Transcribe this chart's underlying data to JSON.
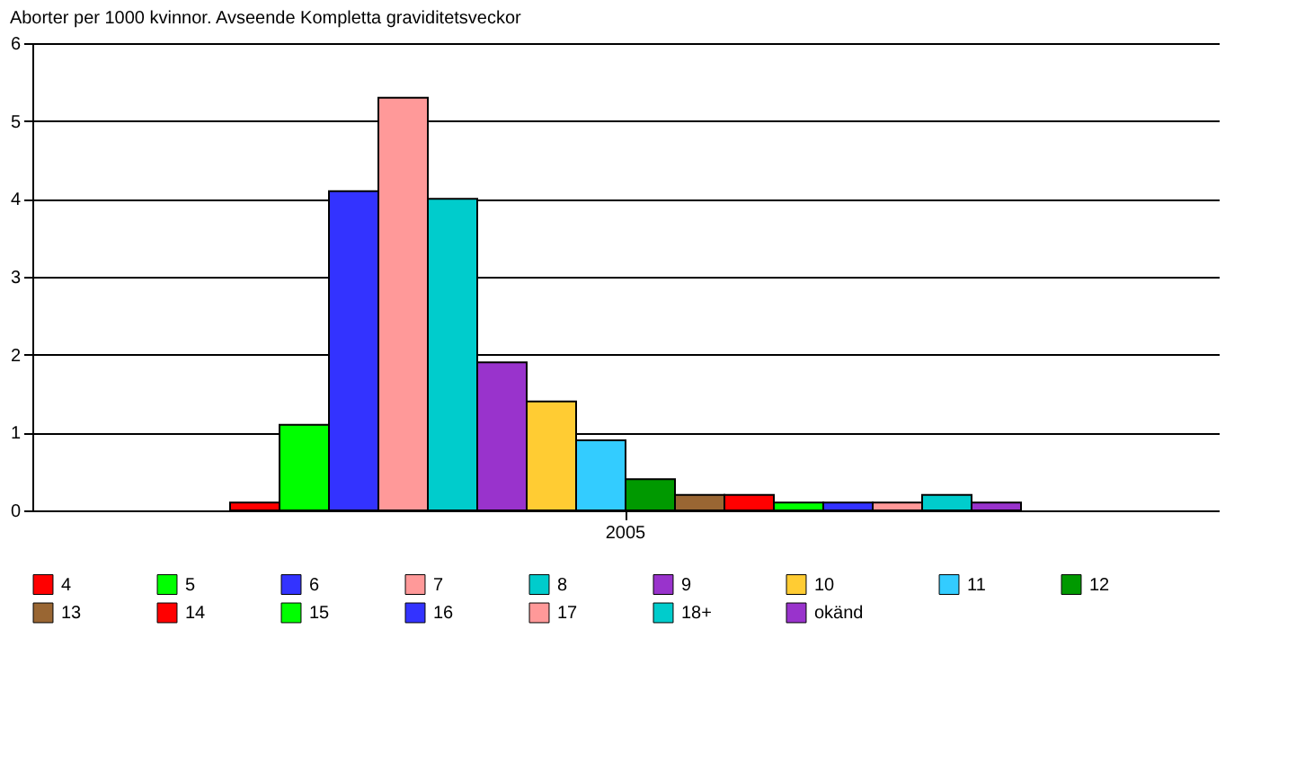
{
  "chart_data": {
    "type": "bar",
    "title": "Aborter per 1000 kvinnor. Avseende Kompletta graviditetsveckor",
    "categories": [
      "2005"
    ],
    "series": [
      {
        "name": "4",
        "color": "#ff0000",
        "values": [
          0.1
        ]
      },
      {
        "name": "5",
        "color": "#00ff00",
        "values": [
          1.1
        ]
      },
      {
        "name": "6",
        "color": "#3333ff",
        "values": [
          4.1
        ]
      },
      {
        "name": "7",
        "color": "#ff9999",
        "values": [
          5.3
        ]
      },
      {
        "name": "8",
        "color": "#00cccc",
        "values": [
          4.0
        ]
      },
      {
        "name": "9",
        "color": "#9933cc",
        "values": [
          1.9
        ]
      },
      {
        "name": "10",
        "color": "#ffcc33",
        "values": [
          1.4
        ]
      },
      {
        "name": "11",
        "color": "#33ccff",
        "values": [
          0.9
        ]
      },
      {
        "name": "12",
        "color": "#009900",
        "values": [
          0.4
        ]
      },
      {
        "name": "13",
        "color": "#996633",
        "values": [
          0.2
        ]
      },
      {
        "name": "14",
        "color": "#ff0000",
        "values": [
          0.2
        ]
      },
      {
        "name": "15",
        "color": "#00ff00",
        "values": [
          0.1
        ]
      },
      {
        "name": "16",
        "color": "#3333ff",
        "values": [
          0.1
        ]
      },
      {
        "name": "17",
        "color": "#ff9999",
        "values": [
          0.1
        ]
      },
      {
        "name": "18+",
        "color": "#00cccc",
        "values": [
          0.2
        ]
      },
      {
        "name": "okänd",
        "color": "#9933cc",
        "values": [
          0.1
        ]
      }
    ],
    "ylim": [
      0,
      6
    ],
    "yticks": [
      0,
      1,
      2,
      3,
      4,
      5,
      6
    ],
    "grid": "y",
    "legend": "bottom"
  }
}
